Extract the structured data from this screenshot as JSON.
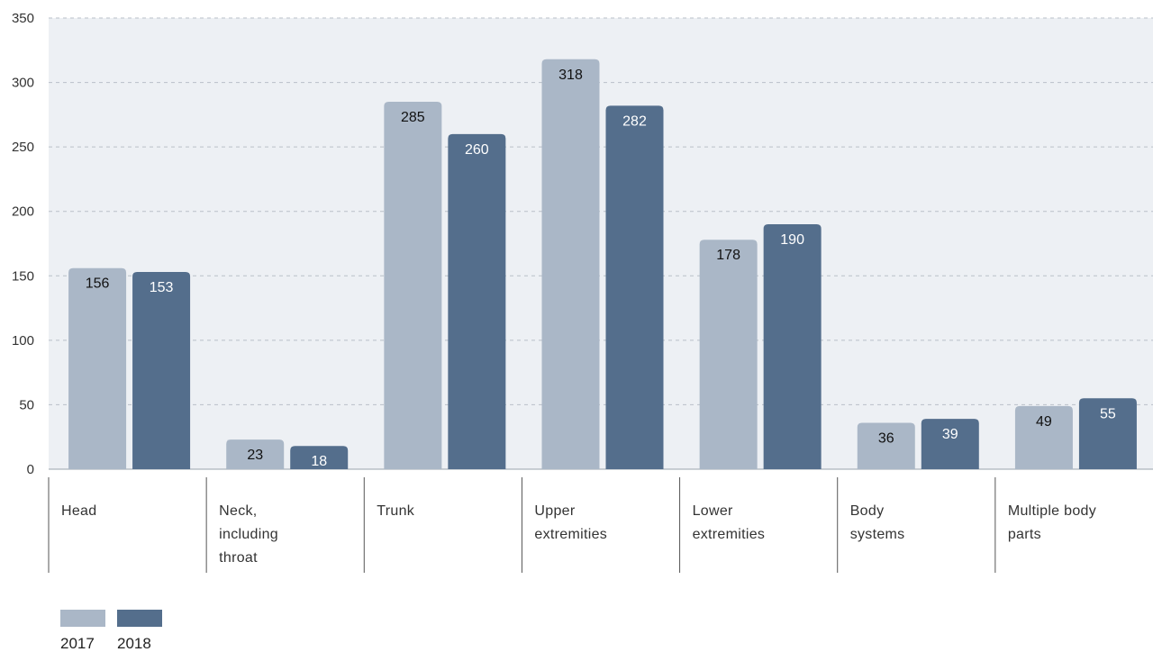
{
  "chart_data": {
    "type": "bar",
    "categories": [
      [
        "Head"
      ],
      [
        "Neck,",
        "including",
        "throat"
      ],
      [
        "Trunk"
      ],
      [
        "Upper",
        "extremities"
      ],
      [
        "Lower",
        "extremities"
      ],
      [
        "Body",
        "systems"
      ],
      [
        "Multiple body",
        "parts"
      ]
    ],
    "series": [
      {
        "name": "2017",
        "color": "#aab7c7",
        "label_color": "#111111",
        "values": [
          156,
          23,
          285,
          318,
          178,
          36,
          49
        ]
      },
      {
        "name": "2018",
        "color": "#546e8c",
        "label_color": "#ffffff",
        "values": [
          153,
          18,
          260,
          282,
          190,
          39,
          55
        ]
      }
    ],
    "yticks": [
      0,
      50,
      100,
      150,
      200,
      250,
      300,
      350
    ],
    "ylim": [
      0,
      350
    ],
    "grid": true,
    "plot_background": "#edf0f4",
    "legend_position": "bottom-left"
  }
}
